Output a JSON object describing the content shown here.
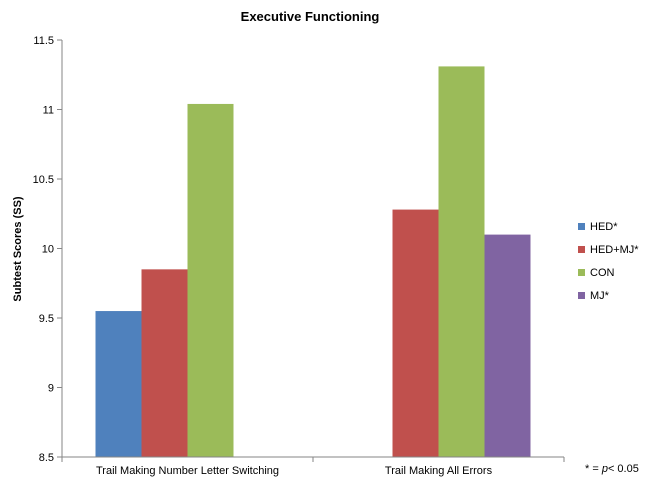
{
  "chart_data": {
    "type": "bar",
    "title": "Executive Functioning",
    "ylabel": "Subtest Scores (SS)",
    "xlabel": "",
    "ylim": [
      8.5,
      11.5
    ],
    "yticks": [
      "8.5",
      "9",
      "9.5",
      "10",
      "10.5",
      "11",
      "11.5"
    ],
    "categories": [
      "Trail Making Number Letter Switching",
      "Trail Making All Errors"
    ],
    "series": [
      {
        "name": "HED*",
        "color": "#4F81BD",
        "values": [
          9.55,
          null
        ]
      },
      {
        "name": "HED+MJ*",
        "color": "#C0504D",
        "values": [
          9.85,
          10.28
        ]
      },
      {
        "name": "CON",
        "color": "#9BBB59",
        "values": [
          11.04,
          11.31
        ]
      },
      {
        "name": "MJ*",
        "color": "#8064A2",
        "values": [
          null,
          10.1
        ]
      }
    ],
    "grid": false,
    "legend_position": "right"
  },
  "note": {
    "prefix": "* = ",
    "italic": "p",
    "suffix": "< 0.05"
  }
}
